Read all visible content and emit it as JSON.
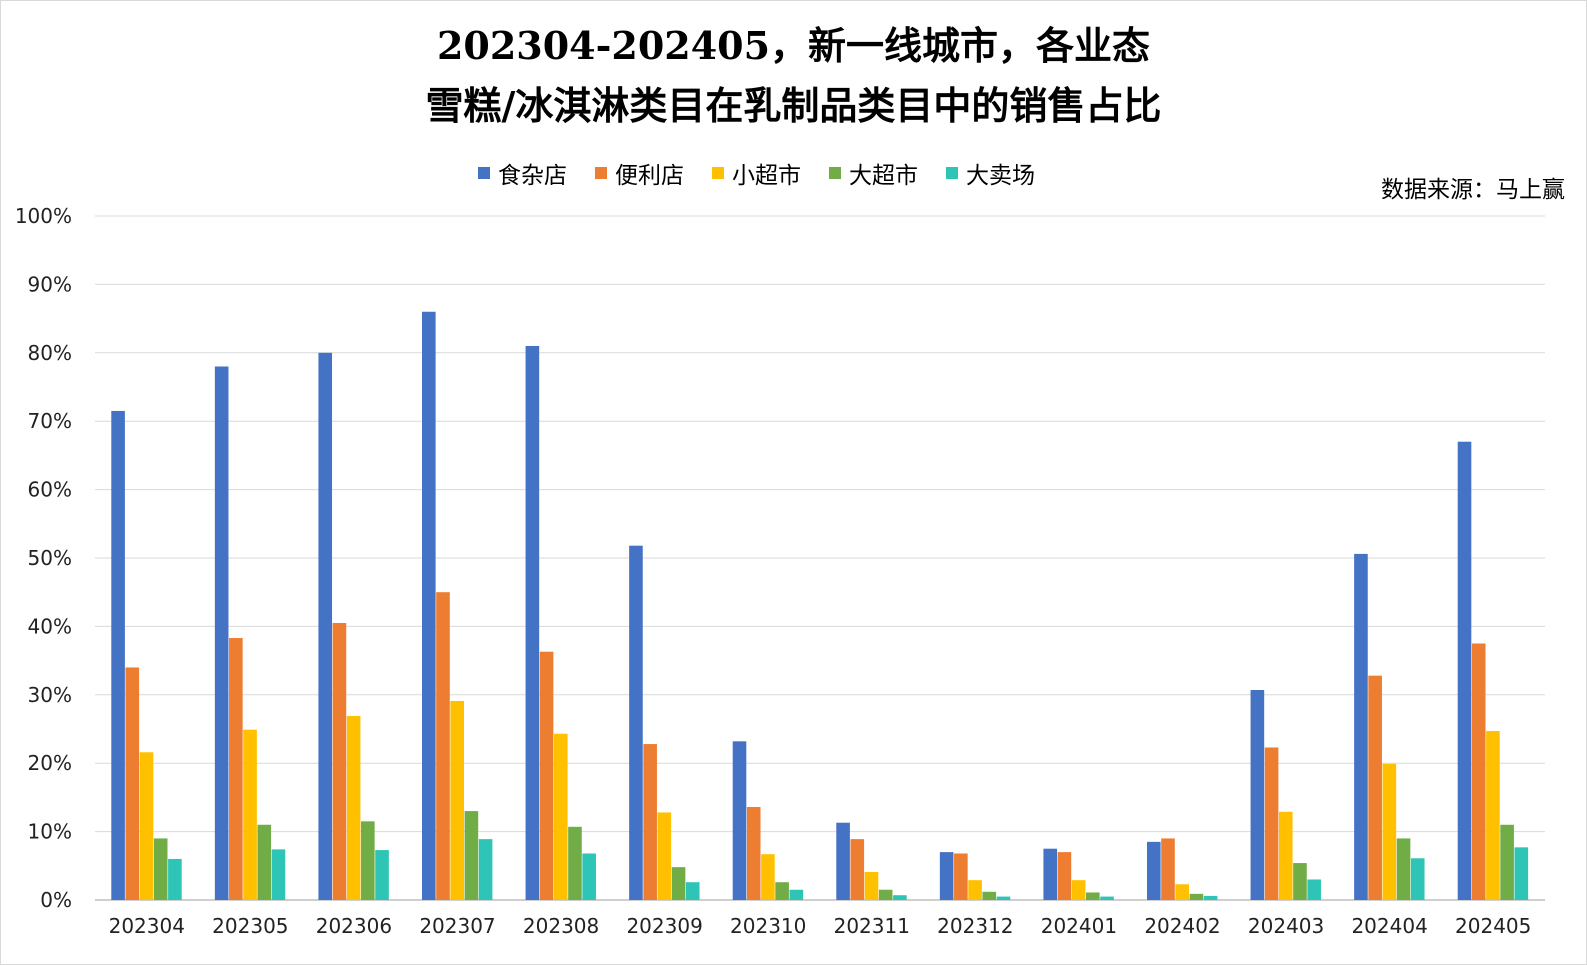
{
  "title_line1": "202304-202405，新一线城市，各业态",
  "title_line2": "雪糕/冰淇淋类目在乳制品类目中的销售占比",
  "source": "数据来源：马上赢",
  "chart_data": {
    "type": "bar",
    "categories": [
      "202304",
      "202305",
      "202306",
      "202307",
      "202308",
      "202309",
      "202310",
      "202311",
      "202312",
      "202401",
      "202402",
      "202403",
      "202404",
      "202405"
    ],
    "series": [
      {
        "name": "食杂店",
        "color": "#4472C4",
        "values": [
          71.5,
          78.0,
          80.0,
          86.0,
          81.0,
          51.8,
          23.2,
          11.3,
          7.0,
          7.5,
          8.5,
          30.7,
          50.6,
          67.0
        ]
      },
      {
        "name": "便利店",
        "color": "#ED7D31",
        "values": [
          34.0,
          38.3,
          40.5,
          45.0,
          36.3,
          22.8,
          13.6,
          8.9,
          6.8,
          7.0,
          9.0,
          22.3,
          32.8,
          37.5
        ]
      },
      {
        "name": "小超市",
        "color": "#FFC000",
        "values": [
          21.6,
          24.9,
          26.9,
          29.1,
          24.3,
          12.8,
          6.7,
          4.1,
          2.9,
          2.9,
          2.3,
          12.9,
          19.9,
          24.7
        ]
      },
      {
        "name": "大超市",
        "color": "#70AD47",
        "values": [
          9.0,
          11.0,
          11.5,
          13.0,
          10.7,
          4.8,
          2.6,
          1.5,
          1.2,
          1.1,
          0.9,
          5.4,
          9.0,
          11.0
        ]
      },
      {
        "name": "大卖场",
        "color": "#2EC4B6",
        "values": [
          6.0,
          7.4,
          7.3,
          8.9,
          6.8,
          2.6,
          1.5,
          0.7,
          0.5,
          0.5,
          0.6,
          3.0,
          6.1,
          7.7
        ]
      }
    ],
    "ylim": [
      0,
      100
    ],
    "yticks": [
      "0%",
      "10%",
      "20%",
      "30%",
      "40%",
      "50%",
      "60%",
      "70%",
      "80%",
      "90%",
      "100%"
    ],
    "grid": true,
    "legend_position": "top"
  }
}
